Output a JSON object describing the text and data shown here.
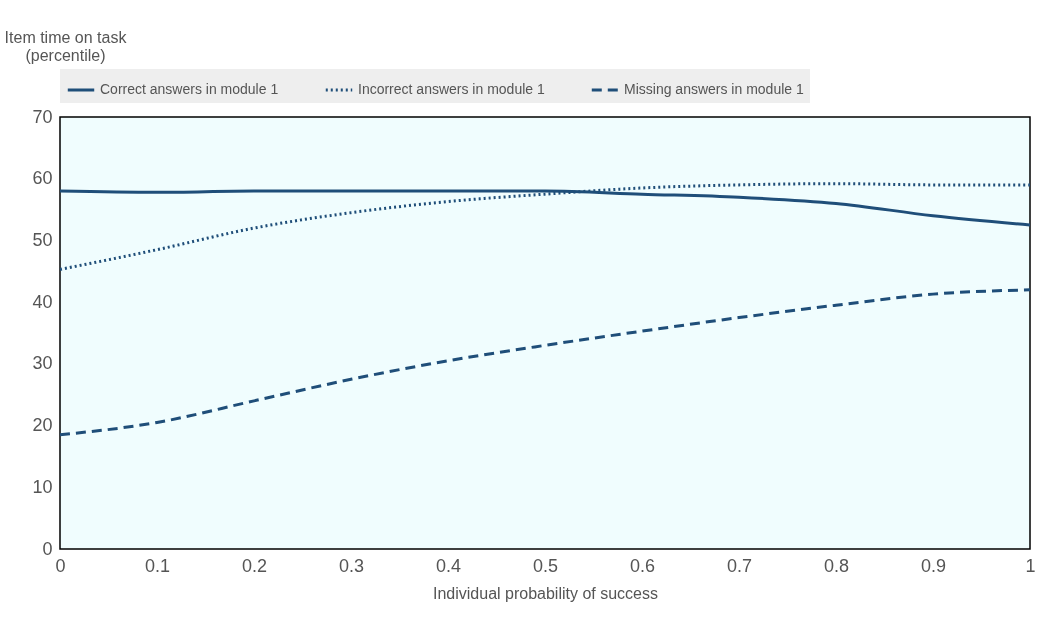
{
  "chart_data": {
    "type": "line",
    "ylabel": "Item time on task\n(percentile)",
    "xlabel": "Individual probability of success",
    "x": [
      0,
      0.1,
      0.2,
      0.3,
      0.4,
      0.5,
      0.6,
      0.7,
      0.8,
      0.9,
      1
    ],
    "xlim": [
      0,
      1
    ],
    "xticks": [
      0,
      0.1,
      0.2,
      0.3,
      0.4,
      0.5,
      0.6,
      0.7,
      0.8,
      0.9,
      1
    ],
    "ylim": [
      0,
      70
    ],
    "yticks": [
      0,
      10,
      20,
      30,
      40,
      50,
      60,
      70
    ],
    "grid": false,
    "legend": "top",
    "marker": "none",
    "series": [
      {
        "name": "Correct answers in module 1",
        "color": "#1f4e79",
        "line_style": "solid",
        "values": [
          58,
          57.8,
          58,
          58,
          58,
          58,
          57.5,
          57,
          56,
          54,
          52.5
        ]
      },
      {
        "name": "Incorrect answers in module 1",
        "color": "#1f4e79",
        "line_style": "dotted",
        "values": [
          45.3,
          48.5,
          52,
          54.5,
          56.3,
          57.5,
          58.5,
          59,
          59.2,
          59,
          59
        ]
      },
      {
        "name": "Missing answers in module 1",
        "color": "#1f4e79",
        "line_style": "dashed",
        "values": [
          18.5,
          20.5,
          24,
          27.5,
          30.5,
          33,
          35.3,
          37.5,
          39.5,
          41.3,
          42
        ]
      }
    ]
  }
}
